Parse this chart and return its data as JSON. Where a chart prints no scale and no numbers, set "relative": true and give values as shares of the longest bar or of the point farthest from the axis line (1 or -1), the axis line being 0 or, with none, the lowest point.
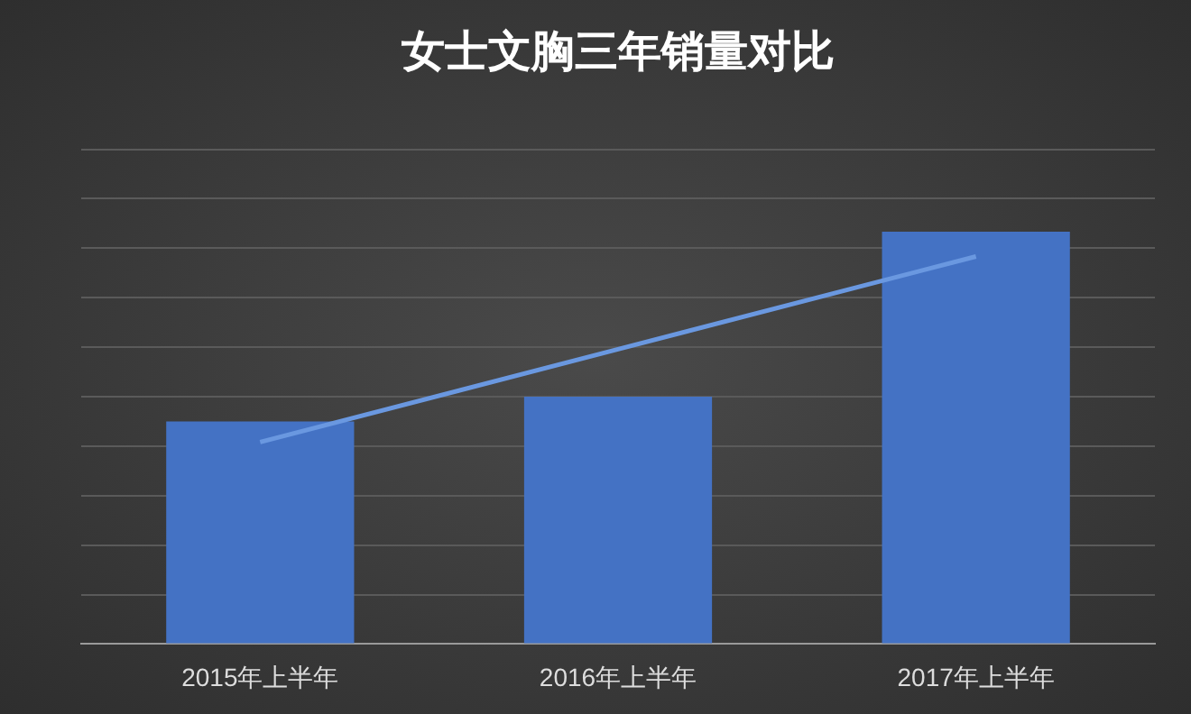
{
  "chart_data": {
    "type": "bar",
    "title": "女士文胸三年销量对比",
    "categories": [
      "2015年上半年",
      "2016年上半年",
      "2017年上半年"
    ],
    "relative": true,
    "grid": "y",
    "legend": false,
    "series": [
      {
        "color": "#4472c4",
        "values": [
          0.54,
          0.6,
          1
        ]
      },
      {
        "type": "line",
        "color": "#6a98e0",
        "values": [
          0.49,
          0.715,
          0.94
        ]
      }
    ]
  }
}
